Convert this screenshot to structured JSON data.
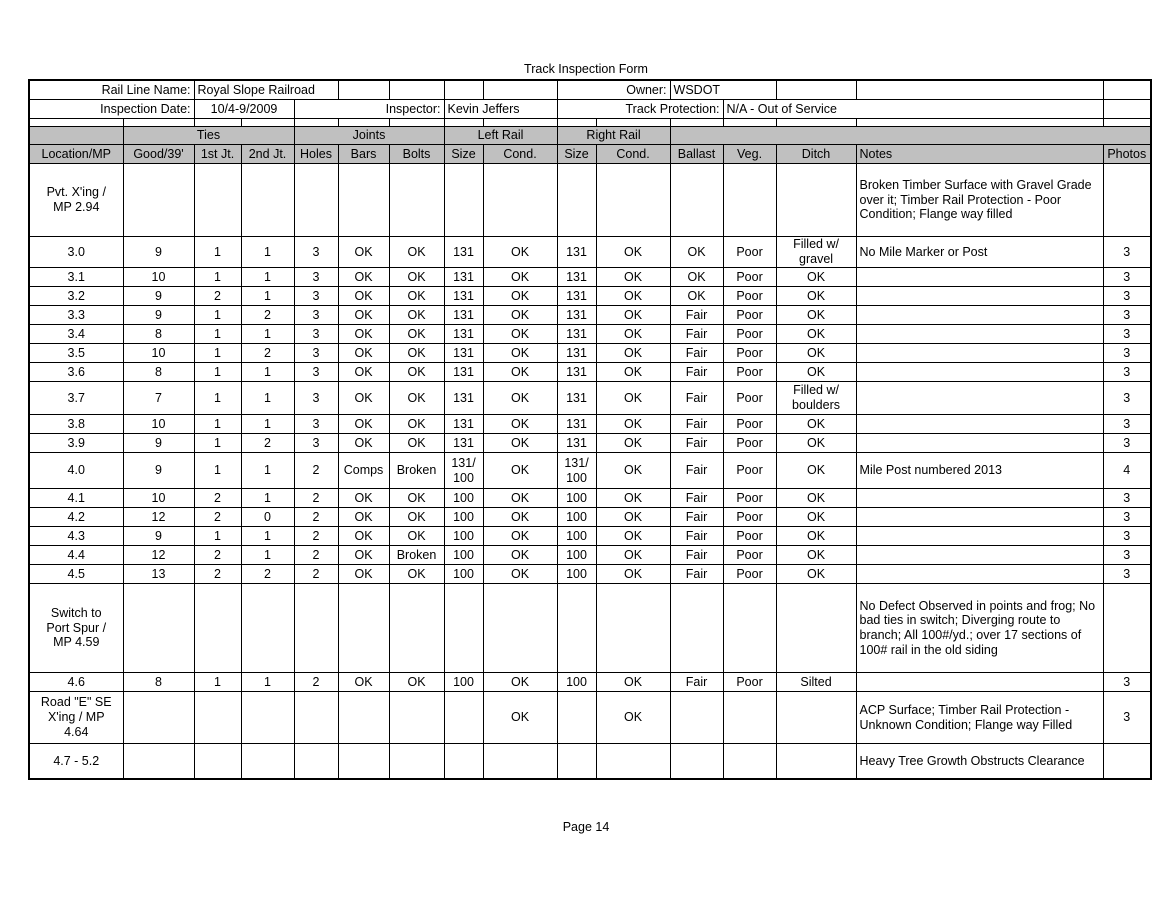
{
  "title": "Track Inspection Form",
  "info": {
    "rail_line_label": "Rail Line Name:",
    "rail_line_value": "Royal Slope Railroad",
    "owner_label": "Owner:",
    "owner_value": "WSDOT",
    "inspection_date_label": "Inspection Date:",
    "inspection_date_value": "10/4-9/2009",
    "inspector_label": "Inspector:",
    "inspector_value": "Kevin Jeffers",
    "track_protection_label": "Track Protection:",
    "track_protection_value": "N/A - Out of Service"
  },
  "table": {
    "group_headers": [
      {
        "label": "",
        "span": 1
      },
      {
        "label": "Ties",
        "span": 3
      },
      {
        "label": "Joints",
        "span": 3
      },
      {
        "label": "Left Rail",
        "span": 2
      },
      {
        "label": "Right Rail",
        "span": 2
      },
      {
        "label": "",
        "span": 5
      }
    ],
    "columns": [
      "Location/MP",
      "Good/39'",
      "1st Jt.",
      "2nd Jt.",
      "Holes",
      "Bars",
      "Bolts",
      "Size",
      "Cond.",
      "Size",
      "Cond.",
      "Ballast",
      "Veg.",
      "Ditch",
      "Notes",
      "Photos"
    ],
    "column_keys": [
      "location",
      "good-39",
      "1st-jt",
      "2nd-jt",
      "holes",
      "bars",
      "bolts",
      "left-size",
      "left-cond",
      "right-size",
      "right-cond",
      "ballast",
      "veg",
      "ditch",
      "notes",
      "photos"
    ],
    "rows": [
      [
        "Pvt. X'ing /\nMP 2.94",
        "",
        "",
        "",
        "",
        "",
        "",
        "",
        "",
        "",
        "",
        "",
        "",
        "",
        "Broken Timber Surface with Gravel Grade over it; Timber Rail Protection - Poor Condition; Flange way filled",
        ""
      ],
      [
        "3.0",
        "9",
        "1",
        "1",
        "3",
        "OK",
        "OK",
        "131",
        "OK",
        "131",
        "OK",
        "OK",
        "Poor",
        "Filled w/\ngravel",
        "No Mile Marker or Post",
        "3"
      ],
      [
        "3.1",
        "10",
        "1",
        "1",
        "3",
        "OK",
        "OK",
        "131",
        "OK",
        "131",
        "OK",
        "OK",
        "Poor",
        "OK",
        "",
        "3"
      ],
      [
        "3.2",
        "9",
        "2",
        "1",
        "3",
        "OK",
        "OK",
        "131",
        "OK",
        "131",
        "OK",
        "OK",
        "Poor",
        "OK",
        "",
        "3"
      ],
      [
        "3.3",
        "9",
        "1",
        "2",
        "3",
        "OK",
        "OK",
        "131",
        "OK",
        "131",
        "OK",
        "Fair",
        "Poor",
        "OK",
        "",
        "3"
      ],
      [
        "3.4",
        "8",
        "1",
        "1",
        "3",
        "OK",
        "OK",
        "131",
        "OK",
        "131",
        "OK",
        "Fair",
        "Poor",
        "OK",
        "",
        "3"
      ],
      [
        "3.5",
        "10",
        "1",
        "2",
        "3",
        "OK",
        "OK",
        "131",
        "OK",
        "131",
        "OK",
        "Fair",
        "Poor",
        "OK",
        "",
        "3"
      ],
      [
        "3.6",
        "8",
        "1",
        "1",
        "3",
        "OK",
        "OK",
        "131",
        "OK",
        "131",
        "OK",
        "Fair",
        "Poor",
        "OK",
        "",
        "3"
      ],
      [
        "3.7",
        "7",
        "1",
        "1",
        "3",
        "OK",
        "OK",
        "131",
        "OK",
        "131",
        "OK",
        "Fair",
        "Poor",
        "Filled w/\nboulders",
        "",
        "3"
      ],
      [
        "3.8",
        "10",
        "1",
        "1",
        "3",
        "OK",
        "OK",
        "131",
        "OK",
        "131",
        "OK",
        "Fair",
        "Poor",
        "OK",
        "",
        "3"
      ],
      [
        "3.9",
        "9",
        "1",
        "2",
        "3",
        "OK",
        "OK",
        "131",
        "OK",
        "131",
        "OK",
        "Fair",
        "Poor",
        "OK",
        "",
        "3"
      ],
      [
        "4.0",
        "9",
        "1",
        "1",
        "2",
        "Comps",
        "Broken",
        "131/\n100",
        "OK",
        "131/\n100",
        "OK",
        "Fair",
        "Poor",
        "OK",
        "Mile Post numbered 2013",
        "4"
      ],
      [
        "4.1",
        "10",
        "2",
        "1",
        "2",
        "OK",
        "OK",
        "100",
        "OK",
        "100",
        "OK",
        "Fair",
        "Poor",
        "OK",
        "",
        "3"
      ],
      [
        "4.2",
        "12",
        "2",
        "0",
        "2",
        "OK",
        "OK",
        "100",
        "OK",
        "100",
        "OK",
        "Fair",
        "Poor",
        "OK",
        "",
        "3"
      ],
      [
        "4.3",
        "9",
        "1",
        "1",
        "2",
        "OK",
        "OK",
        "100",
        "OK",
        "100",
        "OK",
        "Fair",
        "Poor",
        "OK",
        "",
        "3"
      ],
      [
        "4.4",
        "12",
        "2",
        "1",
        "2",
        "OK",
        "Broken",
        "100",
        "OK",
        "100",
        "OK",
        "Fair",
        "Poor",
        "OK",
        "",
        "3"
      ],
      [
        "4.5",
        "13",
        "2",
        "2",
        "2",
        "OK",
        "OK",
        "100",
        "OK",
        "100",
        "OK",
        "Fair",
        "Poor",
        "OK",
        "",
        "3"
      ],
      [
        "Switch to\nPort Spur /\nMP 4.59",
        "",
        "",
        "",
        "",
        "",
        "",
        "",
        "",
        "",
        "",
        "",
        "",
        "",
        "No Defect Observed in points and frog; No bad ties in switch; Diverging route to branch; All 100#/yd.; over 17 sections of 100# rail in the old siding",
        ""
      ],
      [
        "4.6",
        "8",
        "1",
        "1",
        "2",
        "OK",
        "OK",
        "100",
        "OK",
        "100",
        "OK",
        "Fair",
        "Poor",
        "Silted",
        "",
        "3"
      ],
      [
        "Road \"E\" SE\nX'ing / MP\n4.64",
        "",
        "",
        "",
        "",
        "",
        "",
        "",
        "OK",
        "",
        "OK",
        "",
        "",
        "",
        "ACP Surface; Timber Rail Protection - Unknown Condition; Flange way Filled",
        "3"
      ],
      [
        "4.7 - 5.2",
        "",
        "",
        "",
        "",
        "",
        "",
        "",
        "",
        "",
        "",
        "",
        "",
        "",
        "Heavy Tree Growth Obstructs Clearance",
        ""
      ]
    ]
  },
  "footer": {
    "page_label": "Page 14"
  },
  "colors": {
    "header_bg": "#c0c0c0",
    "border": "#000000",
    "page_bg": "#ffffff"
  }
}
